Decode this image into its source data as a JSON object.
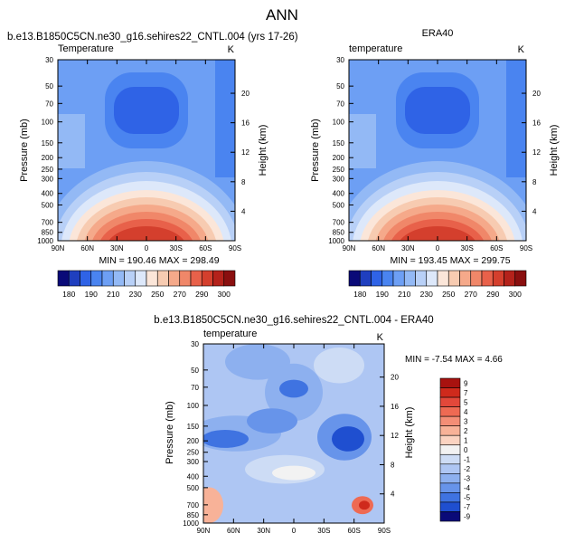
{
  "figure": {
    "main_title": "ANN"
  },
  "chart_data": [
    {
      "type": "heatmap",
      "case_title": "b.e13.B1850C5CN.ne30_g16.sehires22_CNTL.004 (yrs 17-26)",
      "left_title": "Temperature",
      "right_title": "",
      "units": "K",
      "xlabel": "",
      "ylabel": "Pressure (mb)",
      "ylabel_right": "Height (km)",
      "x_ticks": [
        "90N",
        "60N",
        "30N",
        "0",
        "30S",
        "60S",
        "90S"
      ],
      "y_ticks": [
        30,
        50,
        70,
        100,
        150,
        200,
        250,
        300,
        400,
        500,
        700,
        850,
        1000
      ],
      "height_ticks": [
        4,
        8,
        12,
        16,
        20
      ],
      "min_max_text": "MIN = 190.46   MAX = 298.49",
      "colorbar_labels": [
        "180",
        "190",
        "210",
        "230",
        "250",
        "270",
        "290",
        "300"
      ]
    },
    {
      "type": "heatmap",
      "case_title": "",
      "left_title": "temperature",
      "right_title": "ERA40",
      "units": "K",
      "xlabel": "",
      "ylabel": "Pressure (mb)",
      "ylabel_right": "Height (km)",
      "x_ticks": [
        "90N",
        "60N",
        "30N",
        "0",
        "30S",
        "60S",
        "90S"
      ],
      "y_ticks": [
        30,
        50,
        70,
        100,
        150,
        200,
        250,
        300,
        400,
        500,
        700,
        850,
        1000
      ],
      "height_ticks": [
        4,
        8,
        12,
        16,
        20
      ],
      "min_max_text": "MIN = 193.45   MAX = 299.75",
      "colorbar_labels": [
        "180",
        "190",
        "210",
        "230",
        "250",
        "270",
        "290",
        "300"
      ]
    },
    {
      "type": "heatmap",
      "case_title": "b.e13.B1850C5CN.ne30_g16.sehires22_CNTL.004 - ERA40",
      "left_title": "temperature",
      "right_title": "",
      "units": "K",
      "xlabel": "",
      "ylabel": "Pressure (mb)",
      "ylabel_right": "Height (km)",
      "x_ticks": [
        "90N",
        "60N",
        "30N",
        "0",
        "30S",
        "60S",
        "90S"
      ],
      "y_ticks": [
        30,
        50,
        70,
        100,
        150,
        200,
        250,
        300,
        400,
        500,
        700,
        850,
        1000
      ],
      "height_ticks": [
        4,
        8,
        12,
        16,
        20
      ],
      "min_max_text": "MIN = -7.54  MAX =   4.66",
      "colorbar_labels": [
        "9",
        "7",
        "5",
        "4",
        "3",
        "2",
        "1",
        "0",
        "-1",
        "-2",
        "-3",
        "-4",
        "-5",
        "-7",
        "-9"
      ]
    }
  ],
  "colors": {
    "temp_scale": [
      "#0a0a78",
      "#1f3fbf",
      "#2f63e6",
      "#4a84f0",
      "#6d9ff4",
      "#93b9f5",
      "#b8d0f7",
      "#dde8fa",
      "#fbe6d9",
      "#f7cbb1",
      "#f5a98a",
      "#f08769",
      "#e8614a",
      "#d43f2d",
      "#b4221b",
      "#8a0f0f"
    ],
    "diff_scale": [
      "#a8120f",
      "#cf2a1c",
      "#e3483a",
      "#ee6a53",
      "#f48e76",
      "#f8b298",
      "#fbd3c1",
      "#f2f2f2",
      "#cddcf5",
      "#aec6f3",
      "#8db0ef",
      "#6794ea",
      "#3f73e1",
      "#1f4fd0",
      "#0a0a78"
    ]
  }
}
